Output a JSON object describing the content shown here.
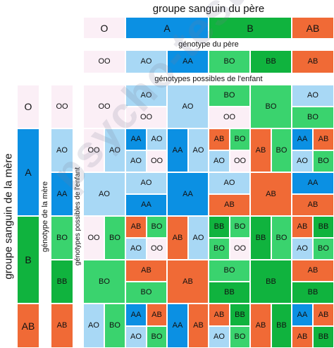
{
  "colors": {
    "O": "#fbeff6",
    "A": "#0b90e3",
    "AO": "#a8d8f5",
    "B": "#10b33e",
    "BO": "#3ad36e",
    "AB": "#f06a36",
    "white": "#ffffff"
  },
  "labels": {
    "father_group": "groupe sanguin du père",
    "father_genotype": "génotype du père",
    "child_genotypes": "génotypes possibles de l'enfant",
    "mother_group": "groupe sanguin de la mère",
    "mother_genotype": "génotype de la mère",
    "child_genotypes_vertical": "génotypes possibles de l'enfant",
    "watermark": "psycho-tests.fr"
  },
  "father_groups": [
    "O",
    "A",
    "B",
    "AB"
  ],
  "father_genotypes": [
    "OO",
    "AO",
    "AA",
    "BO",
    "BB",
    "AB"
  ],
  "mother_groups": [
    "O",
    "A",
    "B",
    "AB"
  ],
  "mother_genotypes": [
    "OO",
    "AO",
    "AA",
    "BO",
    "BB",
    "AB"
  ],
  "child_grid": [
    {
      "mother": "OO",
      "cells": [
        [
          "OO"
        ],
        [
          "AO",
          "OO"
        ],
        [
          "AO"
        ],
        [
          "BO",
          "OO"
        ],
        [
          "BO"
        ],
        [
          "AO",
          "BO"
        ]
      ]
    },
    {
      "mother": "AO",
      "cells": [
        [
          "OO",
          "AO"
        ],
        [
          "AA",
          "AO",
          "AO",
          "OO"
        ],
        [
          "AA",
          "AO"
        ],
        [
          "AB",
          "BO",
          "AO",
          "OO"
        ],
        [
          "AB",
          "BO"
        ],
        [
          "AA",
          "AB",
          "AO",
          "BO"
        ]
      ]
    },
    {
      "mother": "AA",
      "cells": [
        [
          "AO"
        ],
        [
          "AO",
          "AA"
        ],
        [
          "AA"
        ],
        [
          "AO",
          "AB"
        ],
        [
          "AB"
        ],
        [
          "AA",
          "AB"
        ]
      ]
    },
    {
      "mother": "BO",
      "cells": [
        [
          "OO",
          "BO"
        ],
        [
          "AB",
          "BO",
          "AO",
          "OO"
        ],
        [
          "AB",
          "AO"
        ],
        [
          "BB",
          "BO",
          "BO",
          "OO"
        ],
        [
          "BB",
          "BO"
        ],
        [
          "AB",
          "BB",
          "AO",
          "BO"
        ]
      ]
    },
    {
      "mother": "BB",
      "cells": [
        [
          "BO"
        ],
        [
          "AB",
          "BO"
        ],
        [
          "AB"
        ],
        [
          "BO",
          "BB"
        ],
        [
          "BB"
        ],
        [
          "AB",
          "BB"
        ]
      ]
    },
    {
      "mother": "AB",
      "cells": [
        [
          "AO",
          "BO"
        ],
        [
          "AA",
          "AB",
          "AO",
          "BO"
        ],
        [
          "AA",
          "AB"
        ],
        [
          "AB",
          "BB",
          "AO",
          "BO"
        ],
        [
          "AB",
          "BB"
        ],
        [
          "AA",
          "AB",
          "AB",
          "BB"
        ]
      ]
    }
  ]
}
